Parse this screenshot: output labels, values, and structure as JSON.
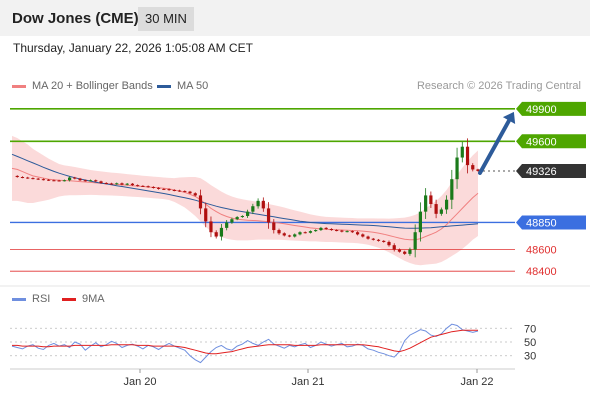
{
  "header": {
    "title": "Dow Jones (CME)",
    "timeframe": "30 MIN"
  },
  "datetime": "Thursday, January 22, 2026 1:05:08 AM CET",
  "legend_main": [
    {
      "label": "MA 20 + Bollinger Bands",
      "color": "#f08080"
    },
    {
      "label": "MA 50",
      "color": "#2d5b9a"
    }
  ],
  "credit": "Research © 2026 Trading Central",
  "legend_rsi": [
    {
      "label": "RSI",
      "color": "#6f8fdf"
    },
    {
      "label": "9MA",
      "color": "#e02020"
    }
  ],
  "colors": {
    "green": "#4ea600",
    "blue": "#3b6fe0",
    "red": "#e03030",
    "candle_up": "#1a7a1a",
    "candle_down": "#b01010",
    "band_fill": "#fbd6d6",
    "arrow": "#2d5b9a",
    "price_tag": "#333333"
  },
  "chart_data": [
    {
      "type": "candlestick",
      "ylim": [
        48300,
        50000
      ],
      "levels": [
        {
          "value": 49900,
          "label": "49900",
          "style": "resistance"
        },
        {
          "value": 49600,
          "label": "49600",
          "style": "resistance"
        },
        {
          "value": 49326,
          "label": "49326",
          "style": "last-price"
        },
        {
          "value": 48850,
          "label": "48850",
          "style": "pivot"
        },
        {
          "value": 48600,
          "label": "48600",
          "style": "support"
        },
        {
          "value": 48400,
          "label": "48400",
          "style": "support"
        }
      ],
      "close_series": [
        49280,
        49270,
        49265,
        49260,
        49255,
        49250,
        49245,
        49240,
        49238,
        49235,
        49240,
        49265,
        49255,
        49240,
        49235,
        49240,
        49230,
        49215,
        49210,
        49205,
        49212,
        49200,
        49208,
        49195,
        49188,
        49185,
        49178,
        49170,
        49160,
        49158,
        49150,
        49145,
        49140,
        49135,
        49120,
        49100,
        48980,
        48860,
        48760,
        48720,
        48800,
        48850,
        48880,
        48900,
        48910,
        48950,
        49000,
        49050,
        48980,
        48850,
        48780,
        48750,
        48730,
        48720,
        48740,
        48760,
        48755,
        48770,
        48780,
        48800,
        48790,
        48780,
        48775,
        48765,
        48770,
        48760,
        48740,
        48720,
        48700,
        48690,
        48680,
        48670,
        48640,
        48600,
        48580,
        48560,
        48600,
        48760,
        48950,
        49100,
        49020,
        48930,
        48970,
        49060,
        49250,
        49450,
        49550,
        49380,
        49340,
        49326
      ],
      "ma20": [
        49350,
        49340,
        49320,
        49300,
        49280,
        49270,
        49260,
        49250,
        49245,
        49240,
        49238,
        49236,
        49232,
        49228,
        49224,
        49220,
        49216,
        49212,
        49208,
        49205,
        49202,
        49198,
        49194,
        49190,
        49186,
        49182,
        49178,
        49174,
        49170,
        49166,
        49160,
        49150,
        49140,
        49128,
        49110,
        49090,
        49060,
        49020,
        48980,
        48950,
        48925,
        48905,
        48890,
        48880,
        48875,
        48870,
        48868,
        48866,
        48862,
        48856,
        48850,
        48845,
        48838,
        48830,
        48822,
        48815,
        48808,
        48800,
        48795,
        48790,
        48786,
        48784,
        48782,
        48780,
        48778,
        48776,
        48773,
        48770,
        48766,
        48760,
        48752,
        48742,
        48730,
        48718,
        48706,
        48695,
        48690,
        48690,
        48700,
        48720,
        48740,
        48760,
        48790,
        48830,
        48880,
        48930,
        48980,
        49030,
        49080,
        49120
      ],
      "ma50": [
        49480,
        49460,
        49440,
        49420,
        49400,
        49380,
        49360,
        49340,
        49322,
        49305,
        49290,
        49276,
        49264,
        49252,
        49242,
        49232,
        49222,
        49214,
        49206,
        49198,
        49190,
        49182,
        49174,
        49166,
        49158,
        49150,
        49142,
        49134,
        49126,
        49118,
        49108,
        49098,
        49088,
        49078,
        49068,
        49056,
        49042,
        49028,
        49014,
        49000,
        48988,
        48978,
        48968,
        48958,
        48950,
        48942,
        48934,
        48926,
        48918,
        48910,
        48902,
        48894,
        48886,
        48878,
        48870,
        48862,
        48856,
        48850,
        48846,
        48842,
        48840,
        48838,
        48836,
        48834,
        48832,
        48830,
        48828,
        48826,
        48824,
        48822,
        48818,
        48814,
        48810,
        48806,
        48802,
        48798,
        48796,
        48796,
        48798,
        48800,
        48802,
        48806,
        48810,
        48814,
        48818,
        48822,
        48826,
        48830,
        48834,
        48838
      ],
      "band_width": [
        300,
        290,
        280,
        270,
        250,
        230,
        210,
        190,
        170,
        150,
        140,
        135,
        130,
        125,
        120,
        115,
        112,
        110,
        108,
        106,
        105,
        104,
        103,
        102,
        101,
        100,
        100,
        100,
        100,
        100,
        102,
        110,
        125,
        140,
        160,
        180,
        200,
        210,
        215,
        215,
        210,
        205,
        200,
        195,
        190,
        185,
        180,
        175,
        170,
        165,
        160,
        155,
        150,
        145,
        140,
        135,
        130,
        125,
        120,
        118,
        116,
        115,
        115,
        115,
        115,
        115,
        115,
        118,
        122,
        128,
        135,
        145,
        155,
        170,
        185,
        200,
        215,
        230,
        245,
        260,
        275,
        290,
        305,
        320,
        340,
        360,
        375,
        385,
        390,
        395
      ]
    },
    {
      "type": "line",
      "title": "RSI",
      "ylim": [
        15,
        85
      ],
      "yticks": [
        30,
        50,
        70
      ],
      "xticks": [
        "Jan 20",
        "Jan 21",
        "Jan 22"
      ],
      "series": [
        {
          "name": "RSI",
          "values": [
            44,
            42,
            40,
            44,
            46,
            41,
            39,
            45,
            48,
            44,
            46,
            42,
            50,
            47,
            38,
            44,
            49,
            43,
            46,
            51,
            48,
            42,
            45,
            47,
            44,
            40,
            45,
            43,
            39,
            44,
            48,
            44,
            41,
            38,
            30,
            24,
            20,
            28,
            36,
            42,
            45,
            40,
            38,
            44,
            47,
            52,
            48,
            45,
            50,
            54,
            47,
            44,
            41,
            45,
            43,
            46,
            48,
            42,
            45,
            50,
            47,
            44,
            46,
            48,
            43,
            44,
            47,
            45,
            40,
            38,
            35,
            33,
            30,
            28,
            36,
            52,
            60,
            64,
            68,
            66,
            60,
            58,
            62,
            70,
            76,
            74,
            68,
            66,
            64,
            66
          ]
        },
        {
          "name": "9MA",
          "values": [
            45,
            45,
            44,
            44,
            44,
            44,
            43,
            43,
            44,
            44,
            44,
            44,
            45,
            45,
            45,
            45,
            45,
            45,
            45,
            46,
            46,
            46,
            46,
            46,
            45,
            45,
            45,
            44,
            44,
            44,
            44,
            44,
            43,
            42,
            40,
            38,
            36,
            34,
            33,
            33,
            34,
            35,
            36,
            38,
            40,
            42,
            43,
            44,
            45,
            46,
            46,
            46,
            46,
            46,
            45,
            45,
            45,
            45,
            45,
            46,
            46,
            46,
            46,
            46,
            46,
            46,
            46,
            46,
            45,
            44,
            43,
            41,
            39,
            37,
            36,
            38,
            41,
            45,
            49,
            53,
            57,
            59,
            61,
            63,
            65,
            66,
            67,
            67,
            67,
            67
          ]
        }
      ]
    }
  ]
}
